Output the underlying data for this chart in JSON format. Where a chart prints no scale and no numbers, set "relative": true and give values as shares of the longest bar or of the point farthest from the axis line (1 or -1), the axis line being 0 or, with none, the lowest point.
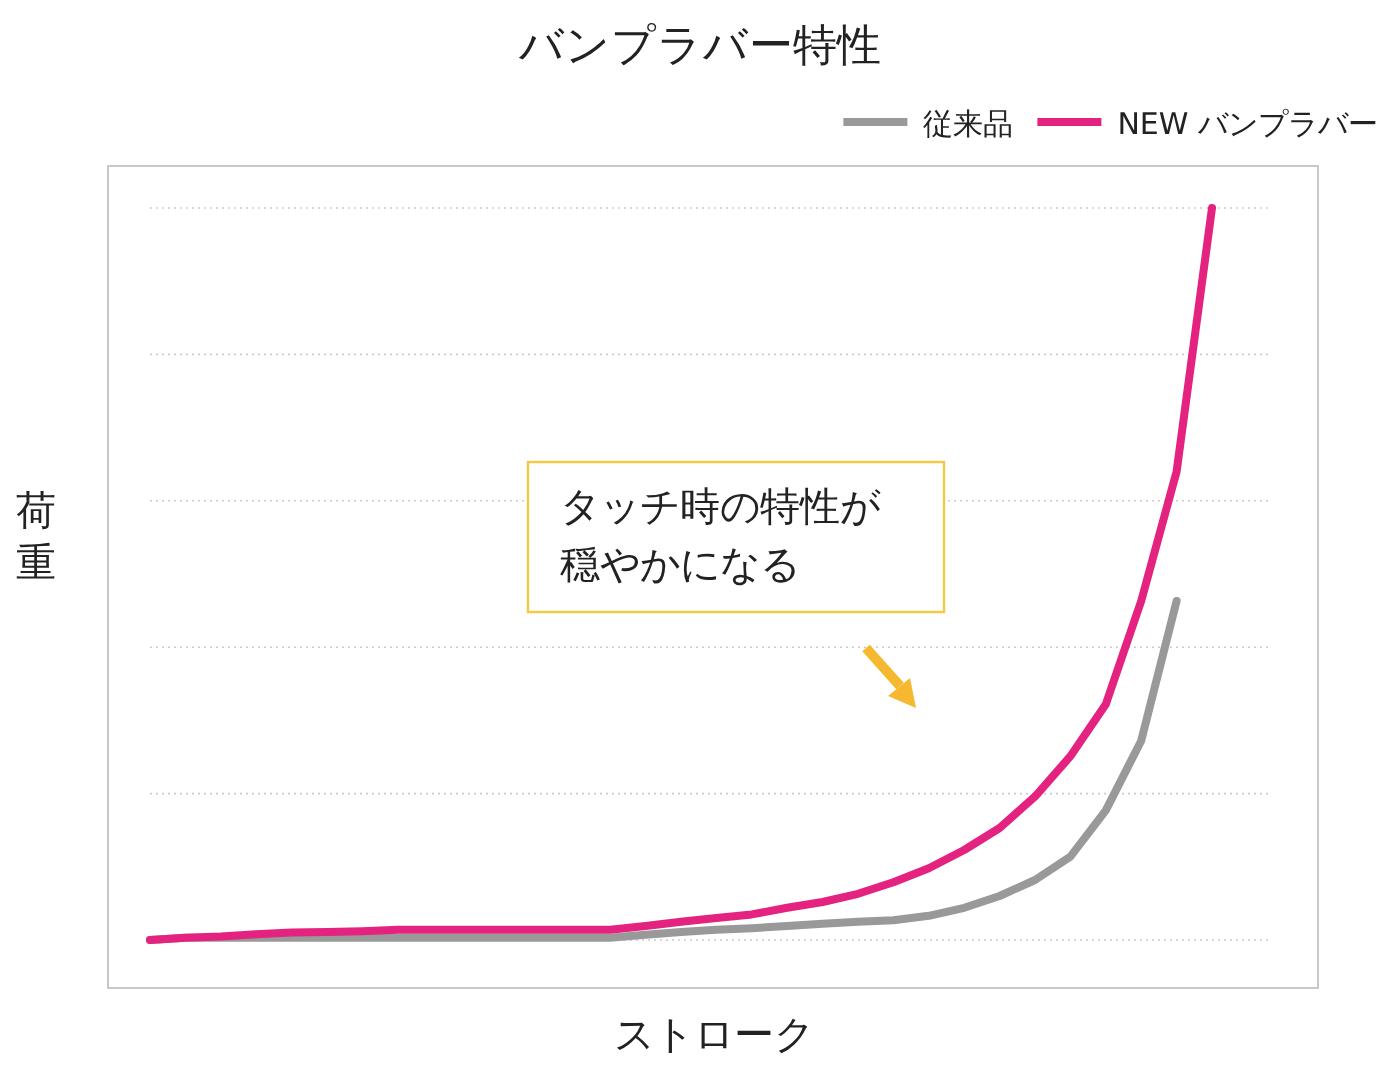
{
  "chart_data": {
    "type": "line",
    "title": "バンプラバー特性",
    "xlabel": "ストローク",
    "ylabel": "荷重",
    "relative": true,
    "grid": "y",
    "legend": "top right",
    "categories": [
      null,
      null,
      null,
      null,
      null,
      null,
      null,
      null,
      null,
      null,
      null,
      null,
      null,
      null,
      null,
      null,
      null,
      null,
      null,
      null,
      null,
      null,
      null,
      null,
      null,
      null,
      null,
      null,
      null,
      null,
      null
    ],
    "series": [
      {
        "name": "従来品",
        "color": "#999999",
        "values": [
          0,
          0.003,
          0.003,
          0.003,
          0.003,
          0.003,
          0.003,
          0.003,
          0.003,
          0.003,
          0.003,
          0.003,
          0.003,
          0.003,
          0.007,
          0.011,
          0.014,
          0.016,
          0.019,
          0.022,
          0.025,
          0.027,
          0.033,
          0.044,
          0.06,
          0.082,
          0.114,
          0.177,
          0.272,
          0.463,
          null
        ]
      },
      {
        "name": "NEW バンプラバー",
        "color": "#e4227f",
        "values": [
          0,
          0.003,
          0.005,
          0.008,
          0.01,
          0.011,
          0.012,
          0.014,
          0.014,
          0.014,
          0.014,
          0.014,
          0.014,
          0.014,
          0.019,
          0.025,
          0.03,
          0.035,
          0.044,
          0.052,
          0.063,
          0.079,
          0.098,
          0.123,
          0.153,
          0.196,
          0.251,
          0.322,
          0.463,
          0.64,
          1
        ]
      }
    ],
    "annotations": [
      "タッチ時の特性が",
      "穏やかになる"
    ]
  }
}
